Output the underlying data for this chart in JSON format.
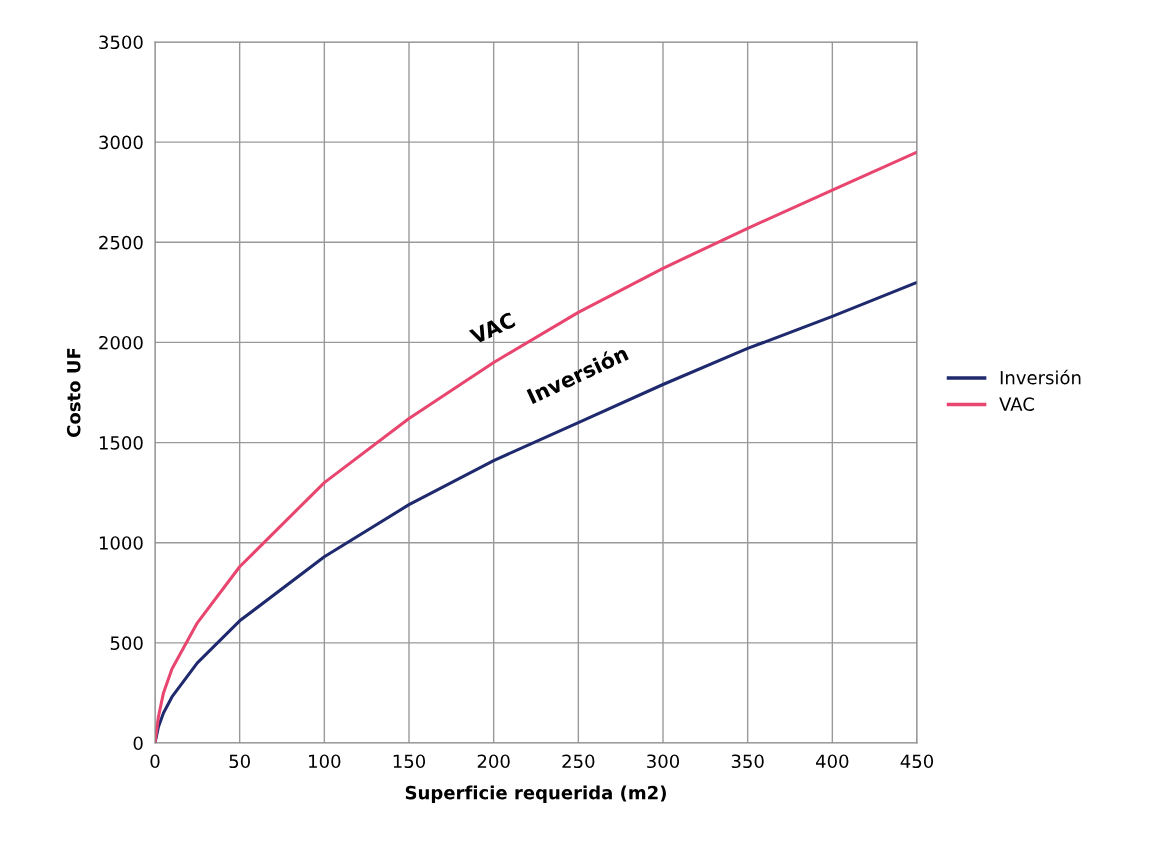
{
  "chart_data": {
    "type": "line",
    "xlabel": "Superficie requerida (m2)",
    "ylabel": "Costo UF",
    "xlim": [
      0,
      450
    ],
    "xticks": [
      0,
      50,
      100,
      150,
      200,
      250,
      300,
      350,
      400,
      450
    ],
    "ylim": [
      0,
      3500
    ],
    "yticks": [
      0,
      500,
      1000,
      1500,
      2000,
      2500,
      3000,
      3500
    ],
    "grid": true,
    "legend": "right",
    "marker": "none",
    "line_style": "solid",
    "series": [
      {
        "name": "Inversión",
        "color": "#1f2a6e",
        "x": [
          0,
          2,
          5,
          10,
          25,
          50,
          100,
          150,
          200,
          250,
          300,
          350,
          400,
          450
        ],
        "values": [
          0,
          80,
          150,
          230,
          400,
          610,
          930,
          1190,
          1410,
          1600,
          1790,
          1970,
          2130,
          2300
        ]
      },
      {
        "name": "VAC",
        "color": "#e8456f",
        "x": [
          0,
          2,
          5,
          10,
          25,
          50,
          100,
          150,
          200,
          250,
          300,
          350,
          400,
          450
        ],
        "values": [
          0,
          130,
          250,
          370,
          600,
          880,
          1300,
          1620,
          1900,
          2150,
          2370,
          2570,
          2760,
          2950
        ]
      }
    ]
  }
}
